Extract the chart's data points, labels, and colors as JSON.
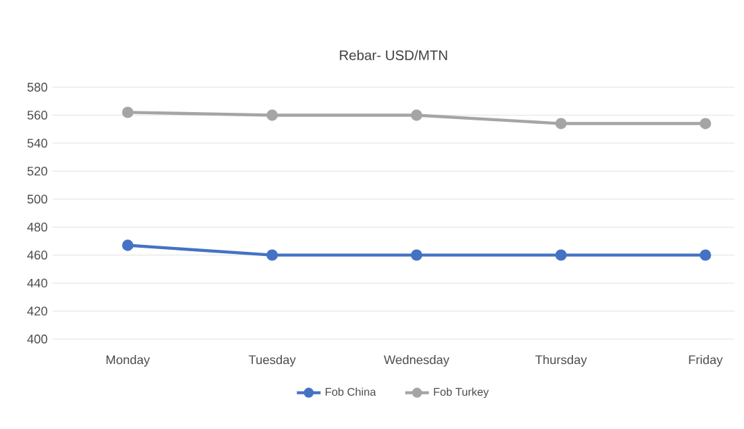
{
  "chart_data": {
    "type": "line",
    "title": "Rebar- USD/MTN",
    "categories": [
      "Monday",
      "Tuesday",
      "Wednesday",
      "Thursday",
      "Friday"
    ],
    "series": [
      {
        "name": "Fob China",
        "color": "#4472c4",
        "values": [
          467,
          460,
          460,
          460,
          460
        ]
      },
      {
        "name": "Fob Turkey",
        "color": "#a5a5a5",
        "values": [
          562,
          560,
          560,
          554,
          554
        ]
      }
    ],
    "ylim": [
      400,
      580
    ],
    "yticks": [
      400,
      420,
      440,
      460,
      480,
      500,
      520,
      540,
      560,
      580
    ],
    "grid": "y",
    "legend": "bottom",
    "marker": "circle",
    "line_style": "solid"
  }
}
